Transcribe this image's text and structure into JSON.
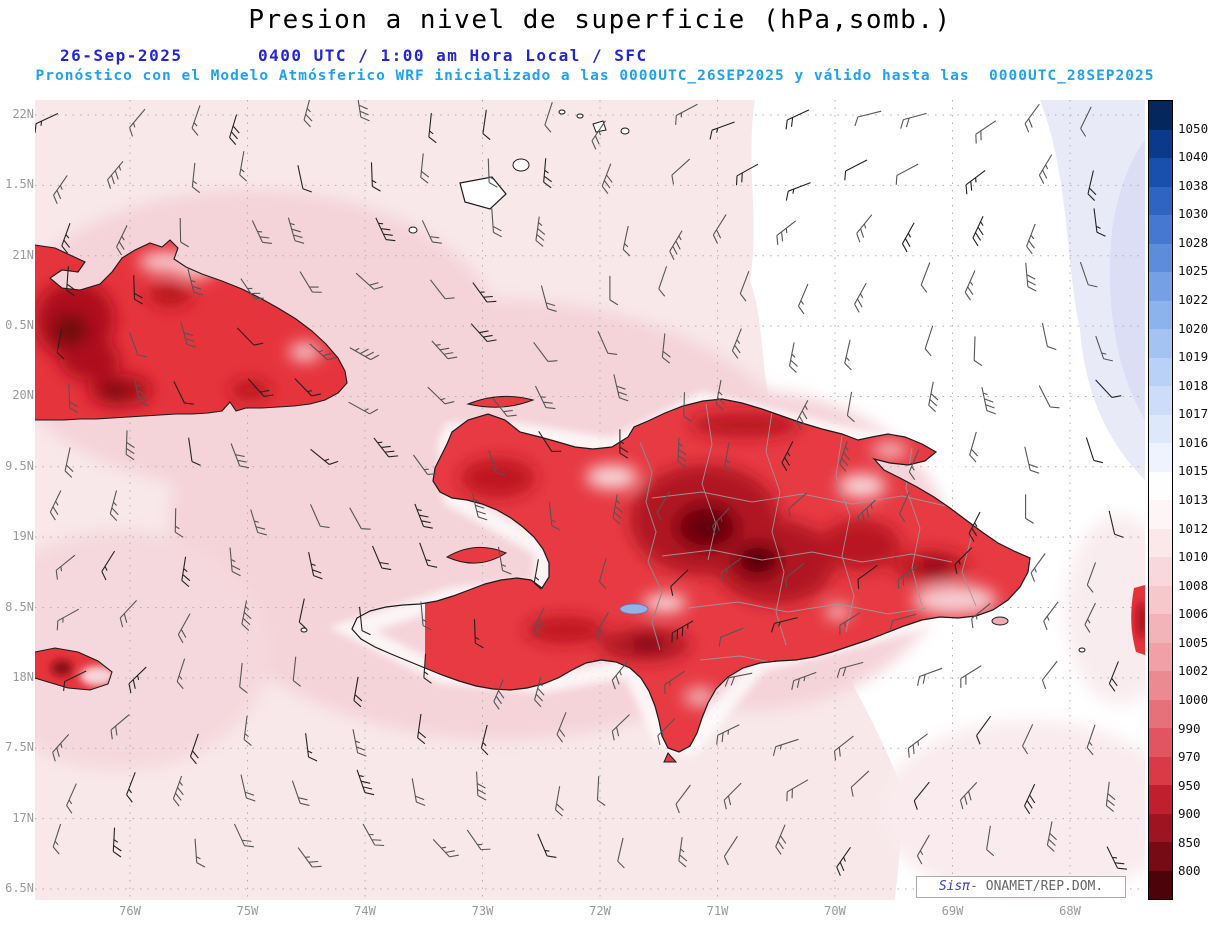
{
  "header": {
    "title": "Presion a nivel de superficie (hPa,somb.)",
    "date": "26-Sep-2025",
    "time_line": "0400 UTC / 1:00 am Hora Local / SFC",
    "forecast_line": "Pronóstico con el Modelo Atmósferico WRF inicializado a las 0000UTC_26SEP2025 y válido hasta las  0000UTC_28SEP2025"
  },
  "map": {
    "lat_labels": [
      "22N",
      "1.5N",
      "21N",
      "0.5N",
      "20N",
      "9.5N",
      "19N",
      "8.5N",
      "18N",
      "7.5N",
      "17N",
      "6.5N"
    ],
    "lon_labels": [
      "76W",
      "75W",
      "74W",
      "73W",
      "72W",
      "71W",
      "70W",
      "69W",
      "68W"
    ],
    "watermark": {
      "brand": "Sisπ",
      "suffix": "- ONAMET/REP.DOM."
    }
  },
  "colorbar": {
    "unit": "hPa",
    "values": [
      "1050",
      "1040",
      "1038",
      "1030",
      "1028",
      "1025",
      "1022",
      "1020",
      "1019",
      "1018",
      "1017",
      "1016",
      "1015",
      "1013",
      "1012",
      "1010",
      "1008",
      "1006",
      "1005",
      "1002",
      "1000",
      "990",
      "970",
      "950",
      "900",
      "850",
      "800"
    ],
    "colors": [
      "#04275e",
      "#0b3a8a",
      "#1950ad",
      "#2f64c3",
      "#4678d1",
      "#5d8cdc",
      "#75a0e6",
      "#8db3ed",
      "#a4c3f2",
      "#b9d1f6",
      "#ccdcf9",
      "#dde8fb",
      "#eef3fd",
      "#fefefe",
      "#fef6f6",
      "#fbe8ea",
      "#f9d8db",
      "#f6c7cb",
      "#f3b4b9",
      "#f0a0a6",
      "#ec8a91",
      "#e7717a",
      "#e15560",
      "#d93a46",
      "#c0202e",
      "#9e1421",
      "#770b15",
      "#4c030a"
    ]
  }
}
